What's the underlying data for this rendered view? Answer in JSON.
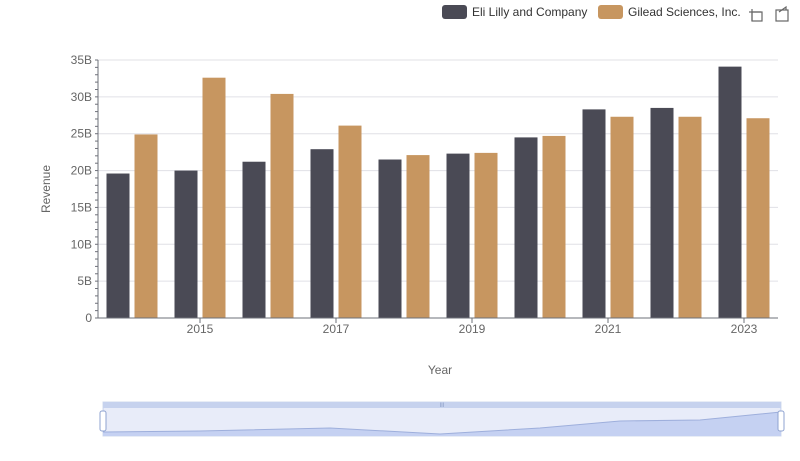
{
  "chart_data": {
    "type": "bar",
    "categories": [
      "2014",
      "2015",
      "2016",
      "2017",
      "2018",
      "2019",
      "2020",
      "2021",
      "2022",
      "2023"
    ],
    "x_tick_labels": [
      "2015",
      "2017",
      "2019",
      "2021",
      "2023"
    ],
    "series": [
      {
        "name": "Eli Lilly and Company",
        "color": "#4a4a55",
        "values": [
          19.6,
          20.0,
          21.2,
          22.9,
          21.5,
          22.3,
          24.5,
          28.3,
          28.5,
          34.1
        ]
      },
      {
        "name": "Gilead Sciences, Inc.",
        "color": "#c79660",
        "values": [
          24.9,
          32.6,
          30.4,
          26.1,
          22.1,
          22.4,
          24.7,
          27.3,
          27.3,
          27.1
        ]
      }
    ],
    "y_ticks": [
      "0",
      "5B",
      "10B",
      "15B",
      "20B",
      "25B",
      "30B",
      "35B"
    ],
    "ylim": [
      0,
      35
    ],
    "xlabel": "Year",
    "ylabel": "Revenue",
    "grid": true,
    "legend_position": "top-right"
  },
  "toolbar": {
    "icons": [
      "zoom-icon",
      "restore-icon"
    ]
  },
  "datazoom": {
    "start_percent": 0,
    "end_percent": 100,
    "handle_label": "III"
  }
}
